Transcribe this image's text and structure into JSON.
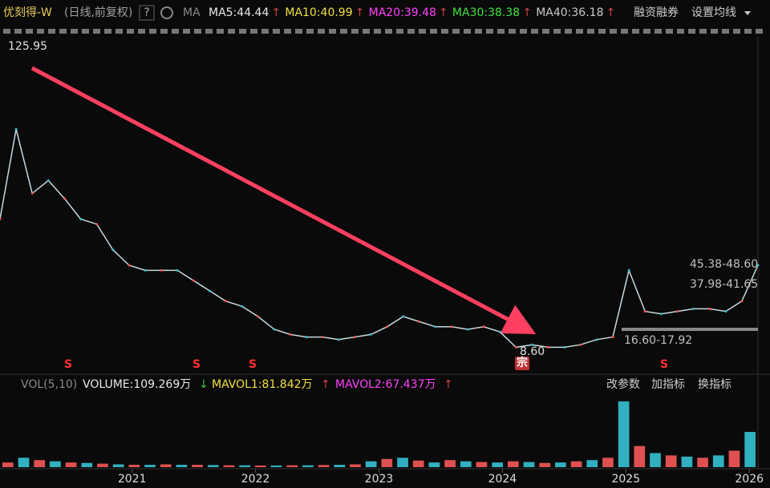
{
  "header": {
    "title": "优刻得-W",
    "period": "(日线,前复权)",
    "help": "?",
    "ma_label": "MA",
    "ma": [
      {
        "text": "MA5:44.44",
        "color": "#e8e8e8"
      },
      {
        "text": "MA10:40.99",
        "color": "#f0e040"
      },
      {
        "text": "MA20:39.48",
        "color": "#ff40ff"
      },
      {
        "text": "MA30:38.38",
        "color": "#40e040"
      },
      {
        "text": "MA40:36.18",
        "color": "#c8c8c8"
      }
    ],
    "up_arrow": "↑",
    "buttons": [
      "融资融券",
      "设置均线"
    ]
  },
  "volume_header": {
    "label": "VOL(5,10)",
    "volume": "VOLUME:109.269万",
    "volume_arrow": "↓",
    "mavol1": "MAVOL1:81.842万",
    "mavol2": "MAVOL2:67.437万",
    "up_arrow": "↑",
    "buttons": [
      "改参数",
      "加指标",
      "换指标"
    ]
  },
  "chart_data": [
    {
      "type": "line",
      "color": "#c8d8e0",
      "ylim": [
        1.7,
        131.3
      ],
      "values": [
        60,
        95,
        70,
        75,
        68,
        60,
        58,
        48,
        42,
        40,
        40,
        40,
        36,
        32,
        28,
        26,
        22,
        17,
        15,
        14,
        14,
        13,
        14,
        15,
        18,
        22,
        20,
        18,
        18,
        17,
        18,
        16,
        10,
        11,
        10,
        10,
        11,
        13,
        14,
        40,
        24,
        23,
        24,
        25,
        25,
        24,
        28,
        42
      ],
      "annotations": [
        "125.95",
        "8.60",
        "45.38-48.60",
        "37.98-41.65",
        "16.60-17.92"
      ],
      "markers": [
        "S",
        "S",
        "S",
        "S",
        "宗"
      ]
    },
    {
      "type": "bar",
      "color": "#30b0c0",
      "ylim": [
        0,
        300
      ],
      "values": [
        20,
        40,
        30,
        25,
        20,
        18,
        15,
        12,
        10,
        10,
        12,
        10,
        10,
        9,
        8,
        8,
        7,
        7,
        8,
        8,
        9,
        10,
        12,
        25,
        35,
        40,
        28,
        20,
        30,
        25,
        22,
        20,
        25,
        22,
        18,
        20,
        25,
        30,
        40,
        280,
        90,
        60,
        50,
        45,
        40,
        50,
        70,
        150
      ],
      "xlim": [
        2019.93,
        2026.07
      ],
      "xticks": [
        2021,
        2022,
        2023,
        2024,
        2025,
        2026
      ]
    }
  ]
}
